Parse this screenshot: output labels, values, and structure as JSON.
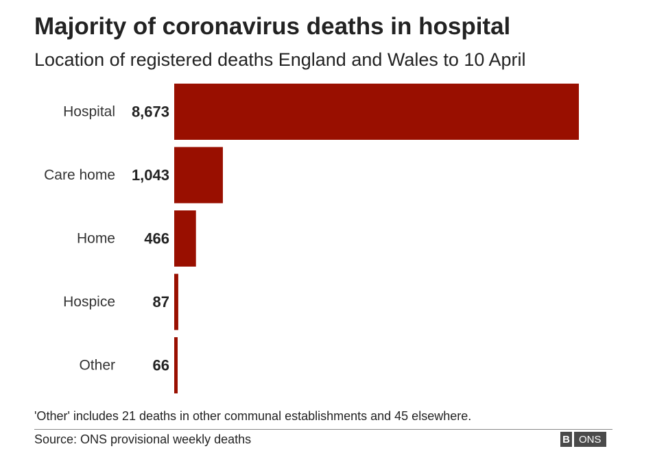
{
  "colors": {
    "bar": "#990f00",
    "text": "#222222"
  },
  "chart_data": {
    "type": "bar",
    "orientation": "horizontal",
    "title": "Majority of coronavirus deaths in hospital",
    "subtitle": "Location of registered deaths England and Wales to 10 April",
    "categories": [
      "Hospital",
      "Care home",
      "Home",
      "Hospice",
      "Other"
    ],
    "values": [
      8673,
      1043,
      466,
      87,
      66
    ],
    "value_labels": [
      "8,673",
      "1,043",
      "466",
      "87",
      "66"
    ],
    "xlim": [
      0,
      8673
    ],
    "grid": false,
    "legend": "none"
  },
  "footer": {
    "note": "'Other' includes 21 deaths in other communal establishments and 45 elsewhere.",
    "source": "Source: ONS provisional weekly deaths",
    "logo_b": "B",
    "logo_ons": "ONS"
  }
}
